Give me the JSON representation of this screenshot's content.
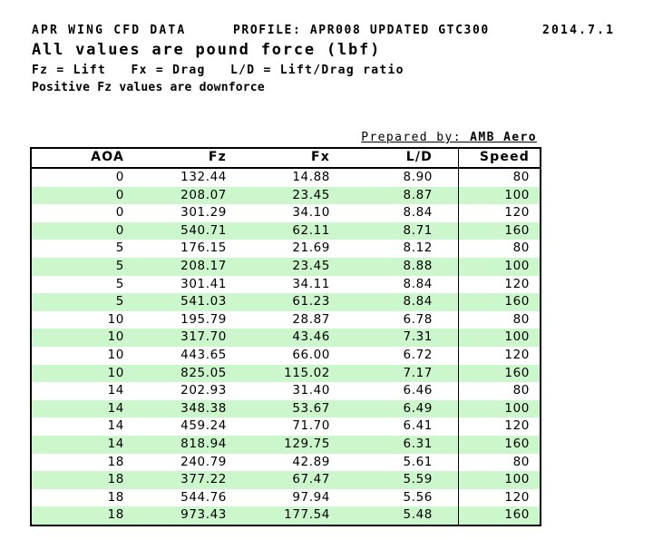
{
  "document": {
    "title": "APR WING CFD DATA",
    "profile": "PROFILE: APR008 UPDATED GTC300",
    "date": "2014.7.1",
    "subtitle": "All values are pound force (lbf)",
    "legend": "Fz = Lift   Fx = Drag   L/D = Lift/Drag ratio",
    "note": "Positive Fz values are downforce",
    "prepared_by": {
      "label": "Prepared by: ",
      "value": "AMB Aero"
    }
  },
  "colors": {
    "background": "#ffffff",
    "text": "#000000",
    "table_border": "#000000",
    "row_stripe_green": "#ccf7cc",
    "row_white": "#ffffff"
  },
  "chart_data": {
    "type": "table",
    "columns": [
      "AOA",
      "Fz",
      "Fx",
      "L/D",
      "Speed"
    ],
    "rows": [
      [
        "0",
        "132.44",
        "14.88",
        "8.90",
        "80"
      ],
      [
        "0",
        "208.07",
        "23.45",
        "8.87",
        "100"
      ],
      [
        "0",
        "301.29",
        "34.10",
        "8.84",
        "120"
      ],
      [
        "0",
        "540.71",
        "62.11",
        "8.71",
        "160"
      ],
      [
        "5",
        "176.15",
        "21.69",
        "8.12",
        "80"
      ],
      [
        "5",
        "208.17",
        "23.45",
        "8.88",
        "100"
      ],
      [
        "5",
        "301.41",
        "34.11",
        "8.84",
        "120"
      ],
      [
        "5",
        "541.03",
        "61.23",
        "8.84",
        "160"
      ],
      [
        "10",
        "195.79",
        "28.87",
        "6.78",
        "80"
      ],
      [
        "10",
        "317.70",
        "43.46",
        "7.31",
        "100"
      ],
      [
        "10",
        "443.65",
        "66.00",
        "6.72",
        "120"
      ],
      [
        "10",
        "825.05",
        "115.02",
        "7.17",
        "160"
      ],
      [
        "14",
        "202.93",
        "31.40",
        "6.46",
        "80"
      ],
      [
        "14",
        "348.38",
        "53.67",
        "6.49",
        "100"
      ],
      [
        "14",
        "459.24",
        "71.70",
        "6.41",
        "120"
      ],
      [
        "14",
        "818.94",
        "129.75",
        "6.31",
        "160"
      ],
      [
        "18",
        "240.79",
        "42.89",
        "5.61",
        "80"
      ],
      [
        "18",
        "377.22",
        "67.47",
        "5.59",
        "100"
      ],
      [
        "18",
        "544.76",
        "97.94",
        "5.56",
        "120"
      ],
      [
        "18",
        "973.43",
        "177.54",
        "5.48",
        "160"
      ]
    ],
    "stripe_pattern": "rows alternate white then pale green, starting white"
  }
}
